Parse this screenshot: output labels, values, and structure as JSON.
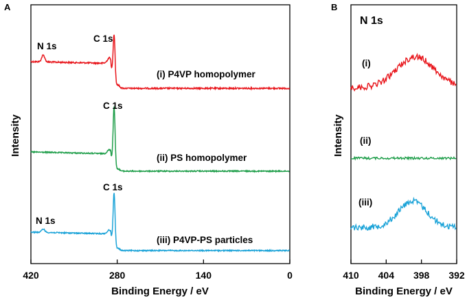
{
  "chart_data": [
    {
      "panel": "A",
      "type": "line",
      "xlabel": "Binding Energy / eV",
      "ylabel": "Intensity",
      "xlim": [
        420,
        0
      ],
      "xticks": [
        420,
        280,
        140,
        0
      ],
      "xtick_labels": [
        "420",
        "280",
        "140",
        "0"
      ],
      "series": [
        {
          "name": "(i) P4VP homopolymer",
          "color": "#e8141a",
          "peaks": [
            {
              "label": "N 1s",
              "x": 400
            },
            {
              "label": "C 1s",
              "x": 285
            }
          ]
        },
        {
          "name": "(ii) PS homopolymer",
          "color": "#1f9e4a",
          "peaks": [
            {
              "label": "C 1s",
              "x": 285
            }
          ]
        },
        {
          "name": "(iii) P4VP-PS particles",
          "color": "#1ba3d8",
          "peaks": [
            {
              "label": "N 1s",
              "x": 400
            },
            {
              "label": "C 1s",
              "x": 285
            }
          ]
        }
      ]
    },
    {
      "panel": "B",
      "type": "line",
      "title": "N 1s",
      "xlabel": "Binding Energy / eV",
      "ylabel": "Intensity",
      "xlim": [
        410,
        392
      ],
      "xticks": [
        410,
        404,
        398,
        392
      ],
      "xtick_labels": [
        "410",
        "404",
        "398",
        "392"
      ],
      "series": [
        {
          "name": "(i)",
          "color": "#e8141a",
          "peak_center": 399,
          "peak_width": 3.2,
          "relative_height": 1.0
        },
        {
          "name": "(ii)",
          "color": "#1f9e4a",
          "peak_center": 399,
          "peak_width": 3.2,
          "relative_height": 0.0
        },
        {
          "name": "(iii)",
          "color": "#1ba3d8",
          "peak_center": 399.5,
          "peak_width": 2.4,
          "relative_height": 0.85
        }
      ]
    }
  ]
}
